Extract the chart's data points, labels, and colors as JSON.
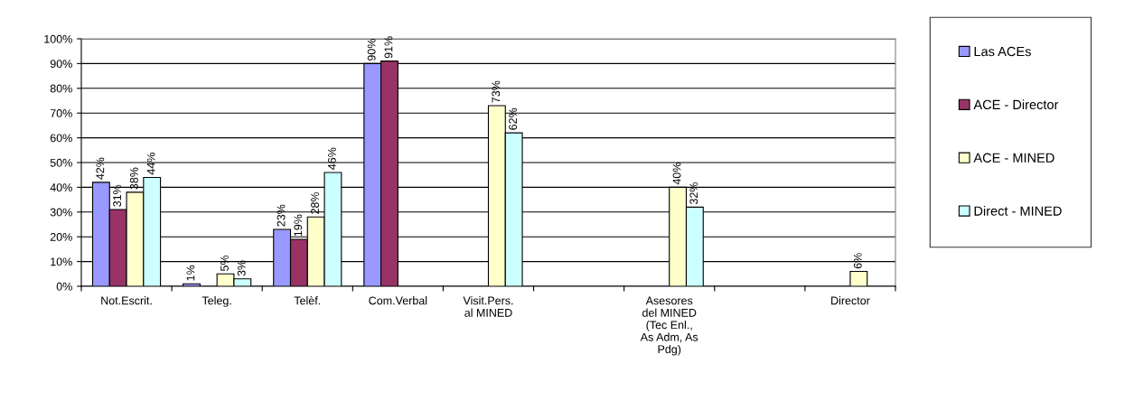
{
  "chart_data": {
    "type": "bar",
    "categories": [
      "Not.Escrit.",
      "Teleg.",
      "Telèf.",
      "Com.Verbal",
      "Visit.Pers.\nal MINED",
      null,
      "Asesores\ndel MINED\n(Tec Enl.,\nAs Adm, As\nPdg)",
      null,
      "Director"
    ],
    "series": [
      {
        "name": "Las ACEs",
        "color": "#9999ff",
        "values": [
          42,
          1,
          23,
          90,
          null,
          null,
          null,
          null,
          null
        ],
        "value_labels": [
          "42%",
          "1%",
          "23%",
          "90%",
          null,
          null,
          null,
          null,
          null
        ]
      },
      {
        "name": "ACE - Director",
        "color": "#993366",
        "values": [
          31,
          null,
          19,
          91,
          null,
          null,
          null,
          null,
          null
        ],
        "value_labels": [
          "31%",
          null,
          "19%",
          "91%",
          null,
          null,
          null,
          null,
          null
        ]
      },
      {
        "name": "ACE - MINED",
        "color": "#ffffcc",
        "values": [
          38,
          5,
          28,
          null,
          73,
          null,
          40,
          null,
          6
        ],
        "value_labels": [
          "38%",
          "5%",
          "28%",
          null,
          "73%",
          null,
          "40%",
          null,
          "6%"
        ]
      },
      {
        "name": "Direct - MINED",
        "color": "#ccffff",
        "values": [
          44,
          3,
          46,
          null,
          62,
          null,
          32,
          null,
          null
        ],
        "value_labels": [
          "44%",
          "3%",
          "46%",
          null,
          "62%",
          null,
          "32%",
          null,
          null
        ]
      }
    ],
    "ylim": [
      0,
      100
    ],
    "yticks": [
      {
        "value": 0,
        "label": "0%"
      },
      {
        "value": 10,
        "label": "10%"
      },
      {
        "value": 20,
        "label": "20%"
      },
      {
        "value": 30,
        "label": "30%"
      },
      {
        "value": 40,
        "label": "40%"
      },
      {
        "value": 50,
        "label": "50%"
      },
      {
        "value": 60,
        "label": "60%"
      },
      {
        "value": 70,
        "label": "70%"
      },
      {
        "value": 80,
        "label": "80%"
      },
      {
        "value": 90,
        "label": "90%"
      },
      {
        "value": 100,
        "label": "100%"
      }
    ],
    "grid": "y",
    "legend": "right"
  }
}
